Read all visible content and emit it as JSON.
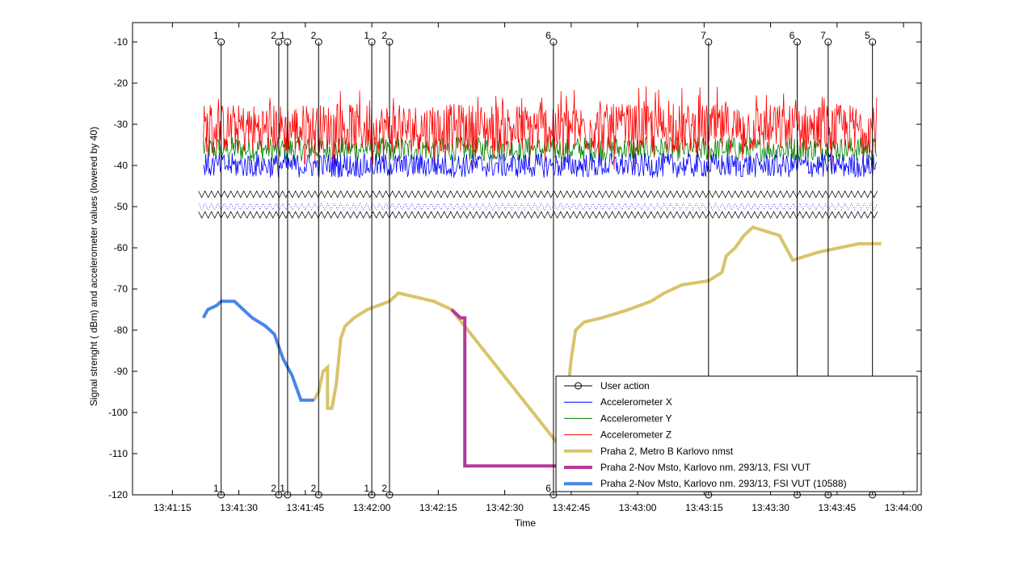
{
  "chart_data": {
    "type": "line",
    "xlabel": "Time",
    "ylabel": "Signal strenght ( dBm) and accelerometer values (lowered by 40)",
    "ylim": [
      -120,
      -10
    ],
    "xlim": [
      "13:41:06",
      "13:44:04"
    ],
    "grid": false,
    "legend_position": "bottom-right",
    "x_ticks": [
      "13:41:15",
      "13:41:30",
      "13:41:45",
      "13:42:00",
      "13:42:15",
      "13:42:30",
      "13:42:45",
      "13:43:00",
      "13:43:15",
      "13:43:30",
      "13:43:45",
      "13:44:00"
    ],
    "y_ticks": [
      -10,
      -20,
      -30,
      -40,
      -50,
      -60,
      -70,
      -80,
      -90,
      -100,
      -110,
      -120
    ],
    "user_actions": [
      {
        "time": "13:41:26",
        "label": "1"
      },
      {
        "time": "13:41:39",
        "label": "2"
      },
      {
        "time": "13:41:41",
        "label": "1"
      },
      {
        "time": "13:41:48",
        "label": "2"
      },
      {
        "time": "13:42:00",
        "label": "1"
      },
      {
        "time": "13:42:04",
        "label": "2"
      },
      {
        "time": "13:42:41",
        "label": "6"
      },
      {
        "time": "13:43:16",
        "label": "7"
      },
      {
        "time": "13:43:36",
        "label": "6"
      },
      {
        "time": "13:43:43",
        "label": "7"
      },
      {
        "time": "13:43:53",
        "label": "5"
      }
    ],
    "accelerometer": {
      "start": "13:41:22",
      "end": "13:43:54",
      "x_mean": -40,
      "x_noise": 3,
      "y_mean": -36,
      "y_noise": 3,
      "z_mean": -31,
      "z_noise": 6,
      "marker_rows": [
        -47,
        -50,
        -52
      ]
    },
    "series": [
      {
        "name": "User action",
        "color": "#000000",
        "points": []
      },
      {
        "name": "Accelerometer X",
        "color": "#0000ff",
        "points": []
      },
      {
        "name": "Accelerometer Y",
        "color": "#008000",
        "points": []
      },
      {
        "name": "Accelerometer Z",
        "color": "#ff0000",
        "points": []
      },
      {
        "name": "Praha 2, Metro B Karlovo nmst",
        "color": "#d8c46a",
        "points": [
          [
            "13:41:47",
            -97
          ],
          [
            "13:41:48",
            -95
          ],
          [
            "13:41:49",
            -90
          ],
          [
            "13:41:50",
            -89
          ],
          [
            "13:41:50",
            -99
          ],
          [
            "13:41:51",
            -99
          ],
          [
            "13:41:52",
            -93
          ],
          [
            "13:41:53",
            -82
          ],
          [
            "13:41:54",
            -79
          ],
          [
            "13:41:56",
            -77
          ],
          [
            "13:41:59",
            -75
          ],
          [
            "13:42:04",
            -73
          ],
          [
            "13:42:06",
            -71
          ],
          [
            "13:42:14",
            -73
          ],
          [
            "13:42:18",
            -75
          ],
          [
            "13:42:43",
            -109
          ],
          [
            "13:42:45",
            -87
          ],
          [
            "13:42:46",
            -80
          ],
          [
            "13:42:48",
            -78
          ],
          [
            "13:42:52",
            -77
          ],
          [
            "13:42:58",
            -75
          ],
          [
            "13:43:03",
            -73
          ],
          [
            "13:43:06",
            -71
          ],
          [
            "13:43:10",
            -69
          ],
          [
            "13:43:16",
            -68
          ],
          [
            "13:43:19",
            -66
          ],
          [
            "13:43:20",
            -62
          ],
          [
            "13:43:22",
            -60
          ],
          [
            "13:43:24",
            -57
          ],
          [
            "13:43:26",
            -55
          ],
          [
            "13:43:32",
            -57
          ],
          [
            "13:43:35",
            -63
          ],
          [
            "13:43:41",
            -61
          ],
          [
            "13:43:50",
            -59
          ],
          [
            "13:43:55",
            -59
          ]
        ]
      },
      {
        "name": "Praha 2-Nov Msto, Karlovo nm. 293/13, FSI VUT",
        "color": "#b5399b",
        "points": [
          [
            "13:42:18",
            -75
          ],
          [
            "13:42:20",
            -77
          ],
          [
            "13:42:21",
            -77
          ],
          [
            "13:42:21",
            -113
          ],
          [
            "13:42:42",
            -113
          ],
          [
            "13:42:43",
            -109
          ]
        ]
      },
      {
        "name": "Praha 2-Nov Msto, Karlovo nm. 293/13, FSI VUT (10588)",
        "color": "#4a86e8",
        "points": [
          [
            "13:41:22",
            -77
          ],
          [
            "13:41:23",
            -75
          ],
          [
            "13:41:25",
            -74
          ],
          [
            "13:41:26",
            -73
          ],
          [
            "13:41:29",
            -73
          ],
          [
            "13:41:31",
            -75
          ],
          [
            "13:41:33",
            -77
          ],
          [
            "13:41:36",
            -79
          ],
          [
            "13:41:37",
            -80
          ],
          [
            "13:41:38",
            -81
          ],
          [
            "13:41:40",
            -87
          ],
          [
            "13:41:42",
            -91
          ],
          [
            "13:41:44",
            -97
          ],
          [
            "13:41:47",
            -97
          ]
        ]
      }
    ]
  }
}
